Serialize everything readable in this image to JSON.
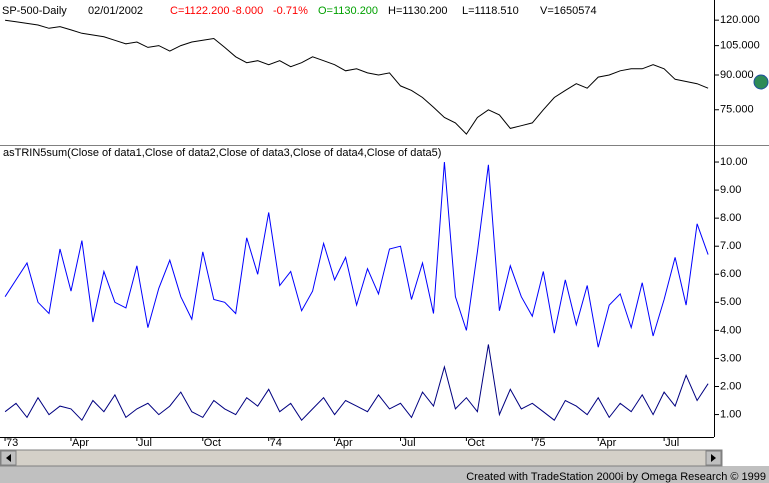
{
  "header": {
    "symbol": "SP-500-Daily",
    "date": "02/01/2002",
    "close": "C=1122.200",
    "change": "-8.000",
    "change_pct": "-0.71%",
    "open": "O=1130.200",
    "high": "H=1130.200",
    "low": "L=1118.510",
    "volume": "V=1650574"
  },
  "footer": "Created with TradeStation 2000i by Omega Research © 1999",
  "chart_data": [
    {
      "type": "line",
      "log_scale": true,
      "x": [
        0,
        0.5,
        1,
        1.5,
        2,
        2.5,
        3,
        3.5,
        4,
        4.5,
        5,
        5.5,
        6,
        6.5,
        7,
        7.5,
        8,
        8.5,
        9,
        9.5,
        10,
        10.5,
        11,
        11.5,
        12,
        12.5,
        13,
        13.5,
        14,
        14.5,
        15,
        15.5,
        16,
        16.5,
        17,
        17.5,
        18,
        18.5,
        19,
        19.5,
        20,
        20.5,
        21,
        21.5,
        22,
        22.5,
        23,
        23.5,
        24,
        24.5,
        25,
        25.5,
        26,
        26.5,
        27,
        27.5,
        28,
        28.5,
        29,
        29.5,
        30,
        30.5,
        31,
        31.5,
        32
      ],
      "series": [
        {
          "color": "#000000",
          "values": [
            120,
            119,
            118,
            117,
            115,
            116,
            114,
            112,
            111,
            110,
            108,
            106,
            107,
            104,
            105,
            102,
            105,
            107,
            108,
            109,
            104,
            99,
            96,
            97,
            95,
            97,
            94,
            96,
            99,
            97,
            95,
            92,
            93,
            91,
            90,
            91,
            85,
            83,
            80,
            76,
            72,
            70,
            66,
            72,
            75,
            73,
            68,
            69,
            70,
            75,
            80,
            83,
            86,
            84,
            89,
            90,
            92,
            93,
            93,
            95,
            93,
            88,
            87,
            86,
            84
          ]
        }
      ],
      "xlim": [
        -0.23,
        32.27
      ],
      "ylim": [
        63,
        132
      ],
      "yticks": [
        {
          "value": 120,
          "label": "120.000"
        },
        {
          "value": 105,
          "label": "105.000"
        },
        {
          "value": 90,
          "label": "90.000"
        },
        {
          "value": 75,
          "label": "75.000"
        }
      ]
    },
    {
      "type": "line",
      "title": "asTRIN5sum(Close of data1,Close of data2,Close of data3,Close of data4,Close of data5)",
      "x": [
        0,
        0.5,
        1,
        1.5,
        2,
        2.5,
        3,
        3.5,
        4,
        4.5,
        5,
        5.5,
        6,
        6.5,
        7,
        7.5,
        8,
        8.5,
        9,
        9.5,
        10,
        10.5,
        11,
        11.5,
        12,
        12.5,
        13,
        13.5,
        14,
        14.5,
        15,
        15.5,
        16,
        16.5,
        17,
        17.5,
        18,
        18.5,
        19,
        19.5,
        20,
        20.5,
        21,
        21.5,
        22,
        22.5,
        23,
        23.5,
        24,
        24.5,
        25,
        25.5,
        26,
        26.5,
        27,
        27.5,
        28,
        28.5,
        29,
        29.5,
        30,
        30.5,
        31,
        31.5,
        32
      ],
      "series": [
        {
          "color": "#0000ff",
          "values": [
            5.2,
            5.8,
            6.4,
            5.0,
            4.6,
            6.9,
            5.4,
            7.2,
            4.3,
            6.1,
            5.0,
            4.8,
            6.3,
            4.1,
            5.5,
            6.5,
            5.2,
            4.4,
            6.8,
            5.1,
            5.0,
            4.6,
            7.3,
            6.0,
            8.2,
            5.6,
            6.1,
            4.7,
            5.4,
            7.1,
            5.8,
            6.6,
            4.9,
            6.2,
            5.3,
            6.9,
            7.0,
            5.1,
            6.4,
            4.6,
            10.0,
            5.2,
            4.0,
            6.8,
            9.9,
            4.7,
            6.3,
            5.2,
            4.5,
            6.1,
            3.9,
            5.8,
            4.2,
            5.6,
            3.4,
            4.9,
            5.3,
            4.1,
            5.7,
            3.8,
            5.1,
            6.6,
            4.9,
            7.8,
            6.7
          ]
        },
        {
          "color": "#000080",
          "values": [
            1.1,
            1.4,
            0.9,
            1.6,
            1.0,
            1.3,
            1.2,
            0.8,
            1.5,
            1.1,
            1.7,
            0.9,
            1.2,
            1.4,
            1.0,
            1.3,
            1.8,
            1.1,
            0.9,
            1.5,
            1.2,
            1.0,
            1.6,
            1.3,
            1.9,
            1.1,
            1.4,
            0.8,
            1.2,
            1.6,
            1.0,
            1.5,
            1.3,
            1.1,
            1.7,
            1.2,
            1.4,
            0.9,
            1.8,
            1.3,
            2.7,
            1.2,
            1.6,
            1.1,
            3.5,
            1.0,
            1.9,
            1.2,
            1.4,
            1.1,
            0.8,
            1.5,
            1.3,
            1.0,
            1.6,
            0.9,
            1.4,
            1.1,
            1.7,
            1.0,
            1.8,
            1.3,
            2.4,
            1.5,
            2.1
          ]
        }
      ],
      "xlim": [
        -0.23,
        32.27
      ],
      "ylim": [
        0.2,
        10.5
      ],
      "yticks": [
        {
          "value": 1,
          "label": "1.00"
        },
        {
          "value": 2,
          "label": "2.00"
        },
        {
          "value": 3,
          "label": "3.00"
        },
        {
          "value": 4,
          "label": "4.00"
        },
        {
          "value": 5,
          "label": "5.00"
        },
        {
          "value": 6,
          "label": "6.00"
        },
        {
          "value": 7,
          "label": "7.00"
        },
        {
          "value": 8,
          "label": "8.00"
        },
        {
          "value": 9,
          "label": "9.00"
        },
        {
          "value": 10,
          "label": "10.00"
        }
      ],
      "xticks": [
        {
          "value": 0,
          "label": "73"
        },
        {
          "value": 3,
          "label": "Apr"
        },
        {
          "value": 6,
          "label": "Jul"
        },
        {
          "value": 9,
          "label": "Oct"
        },
        {
          "value": 12,
          "label": "74"
        },
        {
          "value": 15,
          "label": "Apr"
        },
        {
          "value": 18,
          "label": "Jul"
        },
        {
          "value": 21,
          "label": "Oct"
        },
        {
          "value": 24,
          "label": "75"
        },
        {
          "value": 27,
          "label": "Apr"
        },
        {
          "value": 30,
          "label": "Jul"
        }
      ]
    }
  ]
}
